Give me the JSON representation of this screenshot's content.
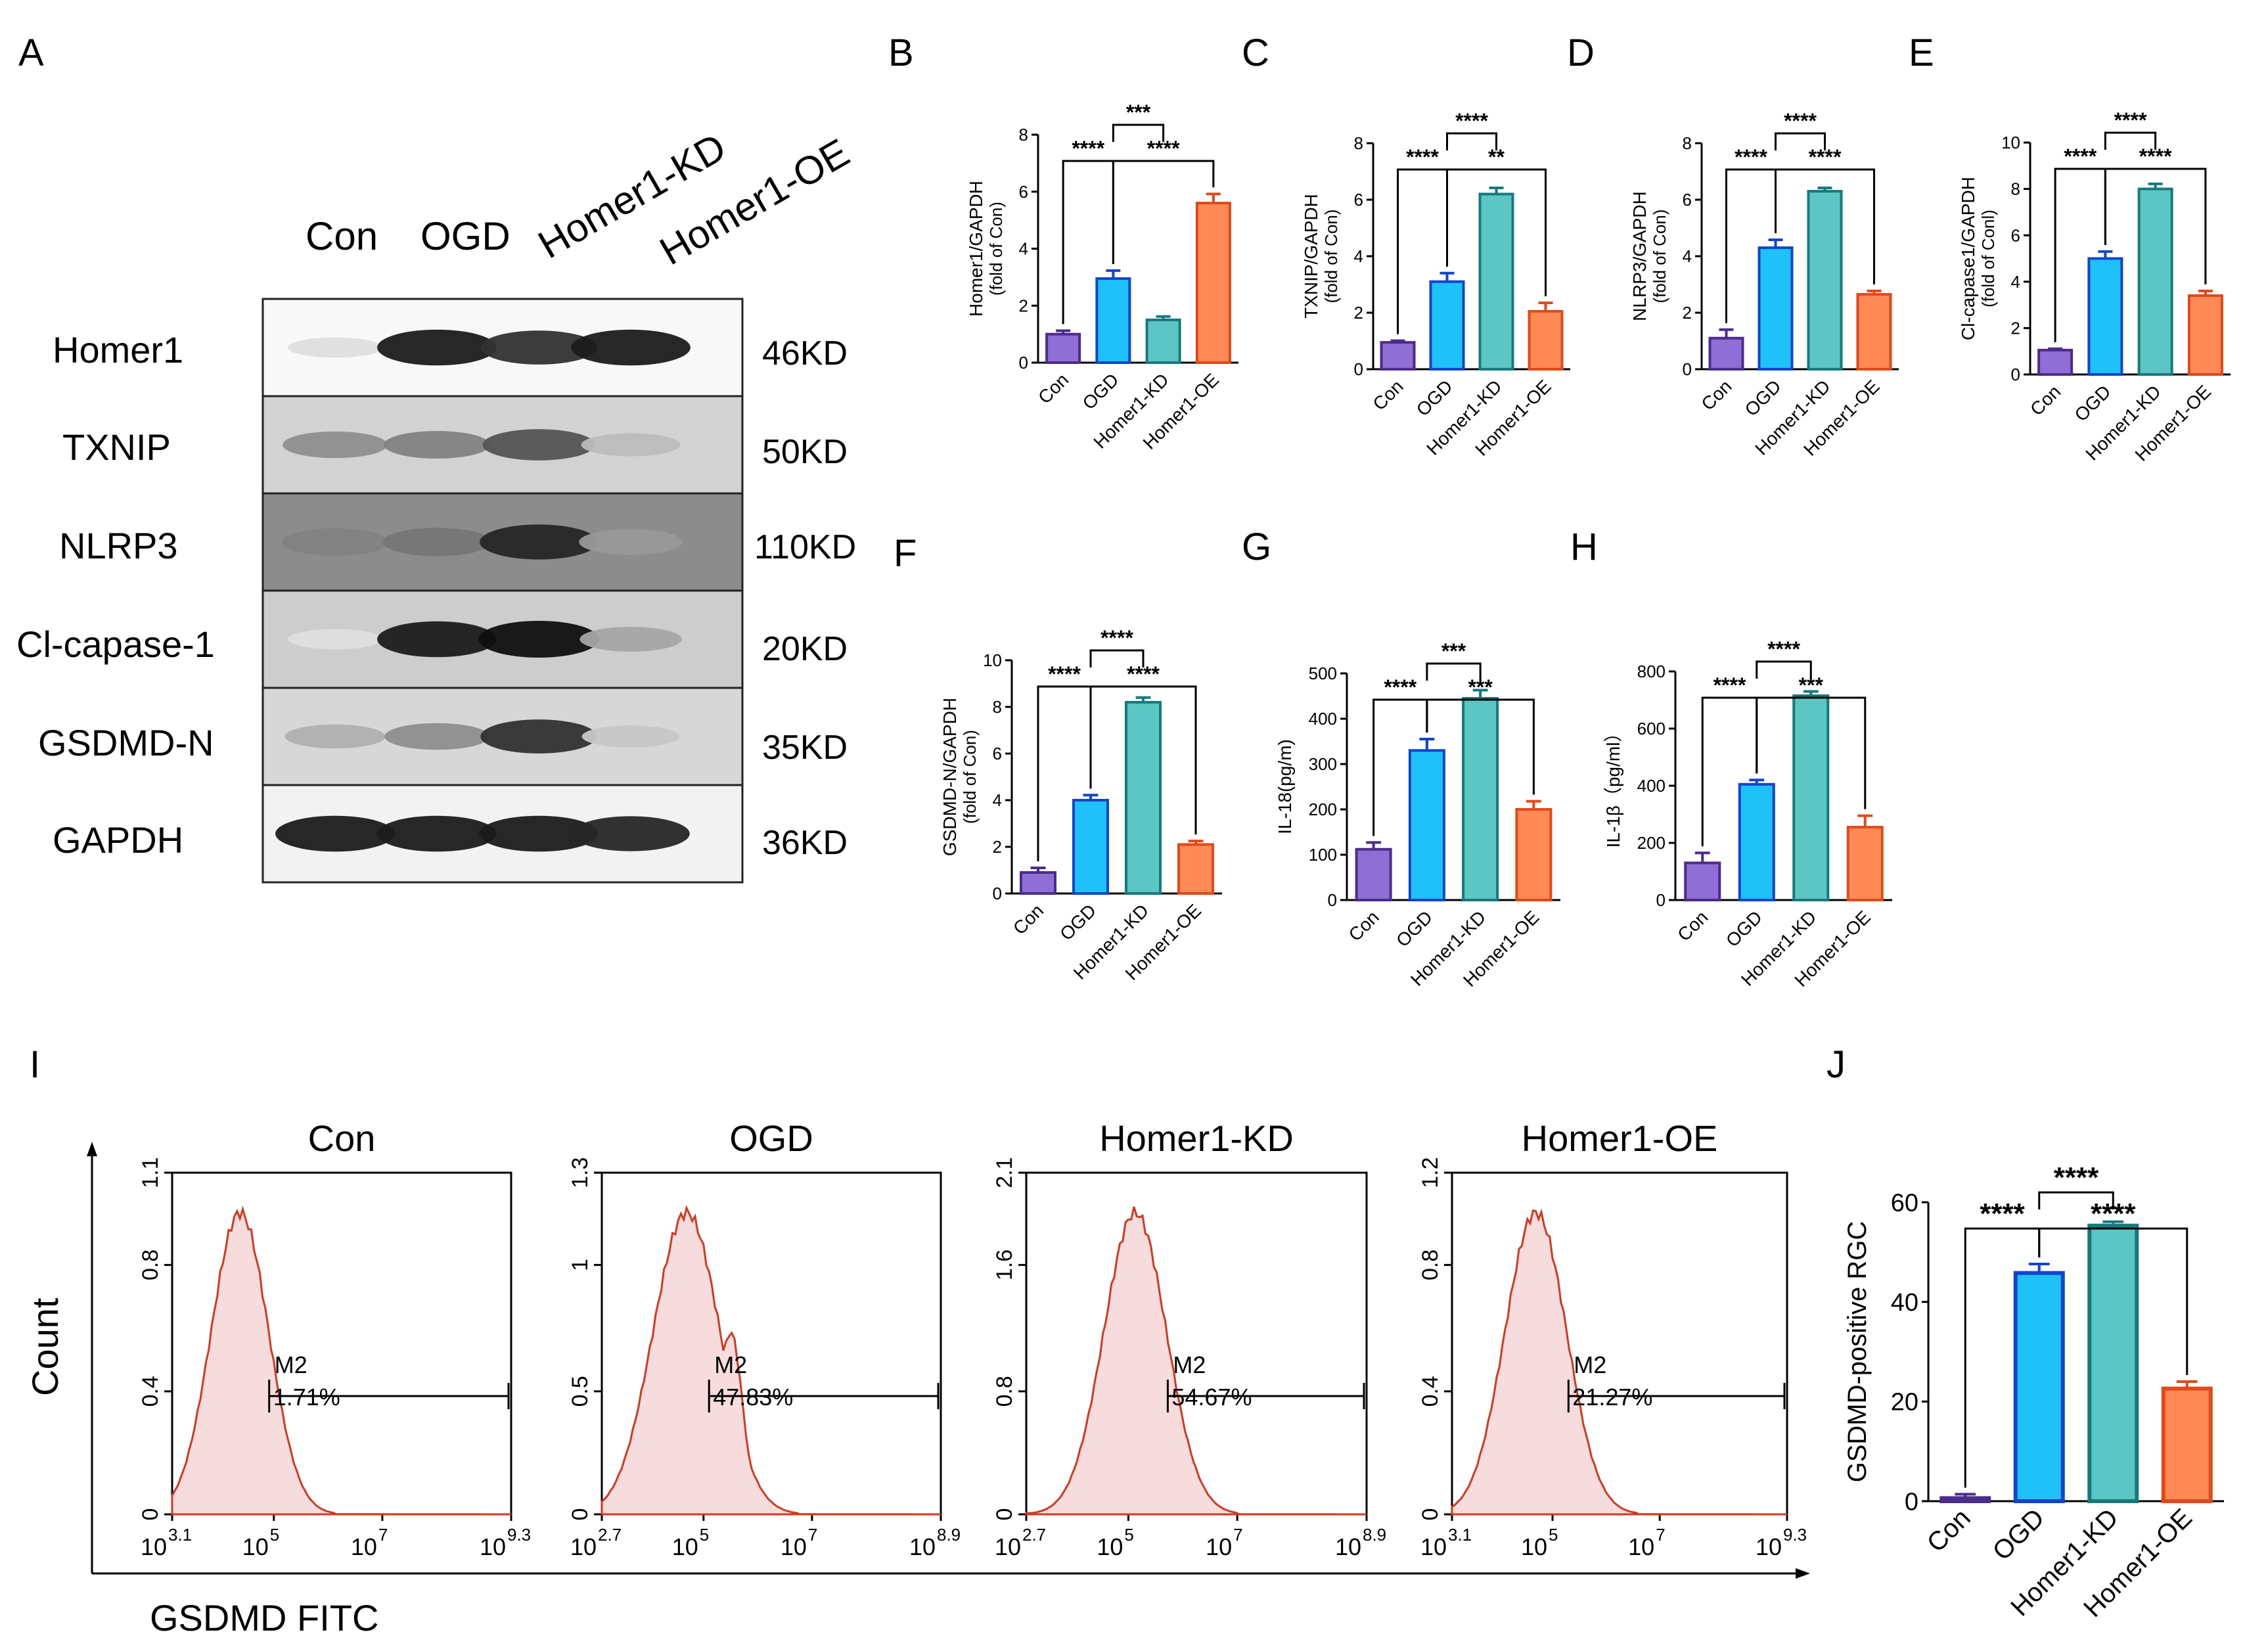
{
  "colors": {
    "Con": {
      "fill": "#8f6ed5",
      "stroke": "#4b2c8a"
    },
    "OGD": {
      "fill": "#1fc2f8",
      "stroke": "#1245c9"
    },
    "Homer1-KD": {
      "fill": "#5cc6c4",
      "stroke": "#167a7c"
    },
    "Homer1-OE": {
      "fill": "#ff8a55",
      "stroke": "#e04a1a"
    },
    "flow_line": "#d03a22",
    "flow_fill": "#f6dcdc"
  },
  "panel_letters": {
    "A": "A",
    "B": "B",
    "C": "C",
    "D": "D",
    "E": "E",
    "F": "F",
    "G": "G",
    "H": "H",
    "I": "I",
    "J": "J"
  },
  "western_blot": {
    "lanes": [
      "Con",
      "OGD",
      "Homer1-KD",
      "Homer1-OE"
    ],
    "proteins": [
      {
        "name": "Homer1",
        "kd": "46KD",
        "intensity": [
          0.1,
          0.95,
          0.85,
          0.95
        ]
      },
      {
        "name": "TXNIP",
        "kd": "50KD",
        "intensity": [
          0.45,
          0.5,
          0.7,
          0.25
        ]
      },
      {
        "name": "NLRP3",
        "kd": "110KD",
        "intensity": [
          0.5,
          0.55,
          0.9,
          0.4
        ]
      },
      {
        "name": "Cl-capase-1",
        "kd": "20KD",
        "intensity": [
          0.1,
          0.95,
          1.0,
          0.35
        ]
      },
      {
        "name": "GSDMD-N",
        "kd": "35KD",
        "intensity": [
          0.3,
          0.45,
          0.85,
          0.2
        ]
      },
      {
        "name": "GAPDH",
        "kd": "36KD",
        "intensity": [
          0.95,
          0.95,
          0.95,
          0.9
        ]
      }
    ]
  },
  "chart_data": [
    {
      "id": "B",
      "type": "bar",
      "categories": [
        "Con",
        "OGD",
        "Homer1-KD",
        "Homer1-OE"
      ],
      "values": [
        1.0,
        2.95,
        1.5,
        5.6
      ],
      "errors": [
        0.12,
        0.28,
        0.12,
        0.32
      ],
      "ylabel": "Homer1/GAPDH",
      "ylabel2": "(fold of Con)",
      "ylim": [
        0,
        8
      ],
      "yticks": [
        "0",
        "2",
        "4",
        "6",
        "8"
      ],
      "yticks_v": [
        0,
        2,
        4,
        6,
        8
      ],
      "sig": [
        {
          "a": 0,
          "b": 1,
          "label": "****"
        },
        {
          "a": 1,
          "b": 3,
          "label": "****"
        },
        {
          "a": 1,
          "b": 2,
          "label": "***",
          "top": true
        }
      ]
    },
    {
      "id": "C",
      "type": "bar",
      "categories": [
        "Con",
        "OGD",
        "Homer1-KD",
        "Homer1-OE"
      ],
      "values": [
        0.95,
        3.1,
        6.2,
        2.05
      ],
      "errors": [
        0.06,
        0.3,
        0.22,
        0.3
      ],
      "ylabel": "TXNIP/GAPDH",
      "ylabel2": "(fold of Con)",
      "ylim": [
        0,
        8
      ],
      "yticks": [
        "0",
        "2",
        "4",
        "6",
        "8"
      ],
      "yticks_v": [
        0,
        2,
        4,
        6,
        8
      ],
      "sig": [
        {
          "a": 0,
          "b": 1,
          "label": "****"
        },
        {
          "a": 1,
          "b": 3,
          "label": "**"
        },
        {
          "a": 1,
          "b": 2,
          "label": "****",
          "top": true
        }
      ]
    },
    {
      "id": "D",
      "type": "bar",
      "categories": [
        "Con",
        "OGD",
        "Homer1-KD",
        "Homer1-OE"
      ],
      "values": [
        1.1,
        4.3,
        6.3,
        2.65
      ],
      "errors": [
        0.3,
        0.28,
        0.12,
        0.12
      ],
      "ylabel": "NLRP3/GAPDH",
      "ylabel2": "(fold of Con)",
      "ylim": [
        0,
        8
      ],
      "yticks": [
        "0",
        "2",
        "4",
        "6",
        "8"
      ],
      "yticks_v": [
        0,
        2,
        4,
        6,
        8
      ],
      "sig": [
        {
          "a": 0,
          "b": 1,
          "label": "****"
        },
        {
          "a": 1,
          "b": 3,
          "label": "****"
        },
        {
          "a": 1,
          "b": 2,
          "label": "****",
          "top": true
        }
      ]
    },
    {
      "id": "E",
      "type": "bar",
      "categories": [
        "Con",
        "OGD",
        "Homer1-KD",
        "Homer1-OE"
      ],
      "values": [
        1.05,
        5.0,
        8.0,
        3.4
      ],
      "errors": [
        0.06,
        0.3,
        0.22,
        0.2
      ],
      "ylabel": "Cl-capase1/GAPDH",
      "ylabel2": "(fold of Conl)",
      "ylim": [
        0,
        10
      ],
      "yticks": [
        "0",
        "2",
        "4",
        "6",
        "8",
        "10"
      ],
      "yticks_v": [
        0,
        2,
        4,
        6,
        8,
        10
      ],
      "sig": [
        {
          "a": 0,
          "b": 1,
          "label": "****"
        },
        {
          "a": 1,
          "b": 3,
          "label": "****"
        },
        {
          "a": 1,
          "b": 2,
          "label": "****",
          "top": true
        }
      ]
    },
    {
      "id": "F",
      "type": "bar",
      "categories": [
        "Con",
        "OGD",
        "Homer1-KD",
        "Homer1-OE"
      ],
      "values": [
        0.9,
        4.0,
        8.2,
        2.1
      ],
      "errors": [
        0.2,
        0.22,
        0.2,
        0.15
      ],
      "ylabel": "GSDMD-N/GAPDH",
      "ylabel2": "(fold of Con)",
      "ylim": [
        0,
        10
      ],
      "yticks": [
        "0",
        "2",
        "4",
        "6",
        "8",
        "10"
      ],
      "yticks_v": [
        0,
        2,
        4,
        6,
        8,
        10
      ],
      "sig": [
        {
          "a": 0,
          "b": 1,
          "label": "****"
        },
        {
          "a": 1,
          "b": 3,
          "label": "****"
        },
        {
          "a": 1,
          "b": 2,
          "label": "****",
          "top": true
        }
      ]
    },
    {
      "id": "G",
      "type": "bar",
      "categories": [
        "Con",
        "OGD",
        "Homer1-KD",
        "Homer1-OE"
      ],
      "values": [
        112,
        330,
        445,
        200
      ],
      "errors": [
        15,
        25,
        18,
        18
      ],
      "ylabel": "IL-18(pg/m)",
      "ylabel2": "",
      "ylim": [
        0,
        500
      ],
      "yticks": [
        "0",
        "100",
        "200",
        "300",
        "400",
        "500"
      ],
      "yticks_v": [
        0,
        100,
        200,
        300,
        400,
        500
      ],
      "sig": [
        {
          "a": 0,
          "b": 1,
          "label": "****"
        },
        {
          "a": 1,
          "b": 3,
          "label": "***"
        },
        {
          "a": 1,
          "b": 2,
          "label": "***",
          "top": true
        }
      ]
    },
    {
      "id": "H",
      "type": "bar",
      "categories": [
        "Con",
        "OGD",
        "Homer1-KD",
        "Homer1-OE"
      ],
      "values": [
        130,
        405,
        715,
        255
      ],
      "errors": [
        35,
        15,
        15,
        40
      ],
      "ylabel": "IL-1β（pg/ml）",
      "ylabel2": "",
      "ylim": [
        0,
        800
      ],
      "yticks": [
        "0",
        "200",
        "400",
        "600",
        "800"
      ],
      "yticks_v": [
        0,
        200,
        400,
        600,
        800
      ],
      "sig": [
        {
          "a": 0,
          "b": 1,
          "label": "****"
        },
        {
          "a": 1,
          "b": 3,
          "label": "***"
        },
        {
          "a": 1,
          "b": 2,
          "label": "****",
          "top": true
        }
      ]
    },
    {
      "id": "J",
      "type": "bar",
      "categories": [
        "Con",
        "OGD",
        "Homer1-KD",
        "Homer1-OE"
      ],
      "values": [
        0.6,
        45.8,
        55.3,
        22.6
      ],
      "errors": [
        0.8,
        1.8,
        0.8,
        1.4
      ],
      "ylabel": "GSDMD-positive RGC",
      "ylabel2": "",
      "ylim": [
        0,
        60
      ],
      "yticks": [
        "0",
        "20",
        "40",
        "60"
      ],
      "yticks_v": [
        0,
        20,
        40,
        60
      ],
      "sig": [
        {
          "a": 0,
          "b": 1,
          "label": "****"
        },
        {
          "a": 1,
          "b": 3,
          "label": "****"
        },
        {
          "a": 1,
          "b": 2,
          "label": "****",
          "top": true
        }
      ]
    }
  ],
  "flow_cytometry": {
    "ylabel": "Count",
    "xlabel": "GSDMD FITC",
    "panels": [
      {
        "title": "Con",
        "ymax": "1.1",
        "yticks": [
          "0",
          "0.4",
          "0.8",
          "1.1"
        ],
        "xmin": "10",
        "xmin_exp": "3.1",
        "xmax": "10",
        "xmax_exp": "9.3",
        "gate": "M2",
        "percent": "1.71%"
      },
      {
        "title": "OGD",
        "ymax": "1.3",
        "yticks": [
          "0",
          "0.5",
          "1",
          "1.3"
        ],
        "xmin": "10",
        "xmin_exp": "2.7",
        "xmax": "10",
        "xmax_exp": "8.9",
        "gate": "M2",
        "percent": "47.83%"
      },
      {
        "title": "Homer1-KD",
        "ymax": "2.1",
        "yticks": [
          "0",
          "0.8",
          "1.6",
          "2.1"
        ],
        "xmin": "10",
        "xmin_exp": "2.7",
        "xmax": "10",
        "xmax_exp": "8.9",
        "gate": "M2",
        "percent": "54.67%"
      },
      {
        "title": "Homer1-OE",
        "ymax": "1.2",
        "yticks": [
          "0",
          "0.4",
          "0.8",
          "1.2"
        ],
        "xmin": "10",
        "xmin_exp": "3.1",
        "xmax": "10",
        "xmax_exp": "9.3",
        "gate": "M2",
        "percent": "21.27%"
      }
    ],
    "mid_ticks": [
      {
        "base": "10",
        "exp": "5"
      },
      {
        "base": "10",
        "exp": "7"
      }
    ]
  }
}
